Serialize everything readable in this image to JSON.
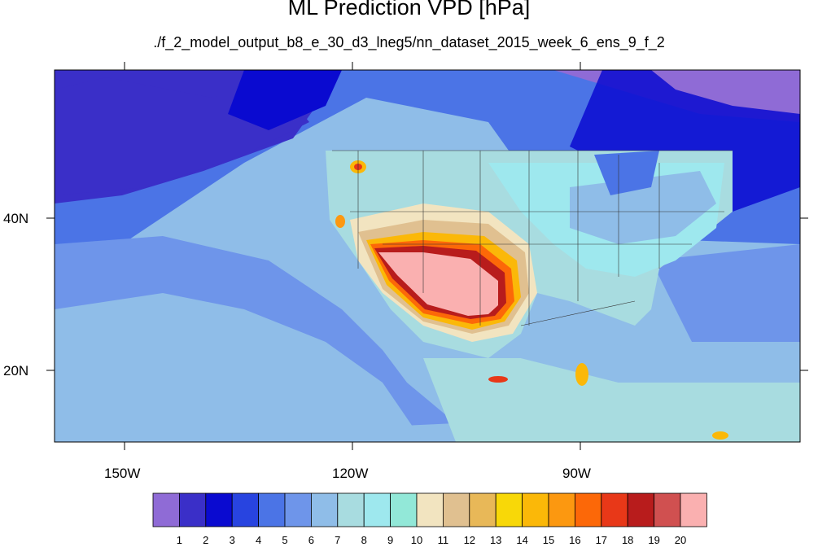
{
  "title": "ML Prediction VPD [hPa]",
  "subtitle": "./f_2_model_output_b8_e_30_d3_lneg5/nn_dataset_2015_week_6_ens_9_f_2",
  "lon_axis": {
    "ticks": [
      "150W",
      "120W",
      "90W"
    ]
  },
  "lat_axis": {
    "ticks": [
      "40N",
      "20N"
    ]
  },
  "colorbar": {
    "labels": [
      "1",
      "2",
      "3",
      "4",
      "5",
      "6",
      "7",
      "8",
      "9",
      "10",
      "11",
      "12",
      "13",
      "14",
      "15",
      "16",
      "17",
      "18",
      "19",
      "20"
    ],
    "colors": [
      "#8f6bd6",
      "#3a2fc8",
      "#0a0ad0",
      "#2844e0",
      "#4b74e6",
      "#6e95ea",
      "#8fbde8",
      "#a8dce0",
      "#9ee8ee",
      "#92e8d8",
      "#f2e4c0",
      "#e0c090",
      "#e8b858",
      "#f8d808",
      "#fbb808",
      "#fc9810",
      "#fc6808",
      "#e83818",
      "#b81c1c",
      "#d05050",
      "#fab0b0"
    ]
  },
  "colors": {
    "ocean_deep": "#2844e0",
    "ocean_mid": "#4b74e6",
    "ocean_light": "#8fbde8",
    "land_moist": "#a8dce0",
    "dry_core": "#fab0b0",
    "dry_hot": "#e83818"
  }
}
